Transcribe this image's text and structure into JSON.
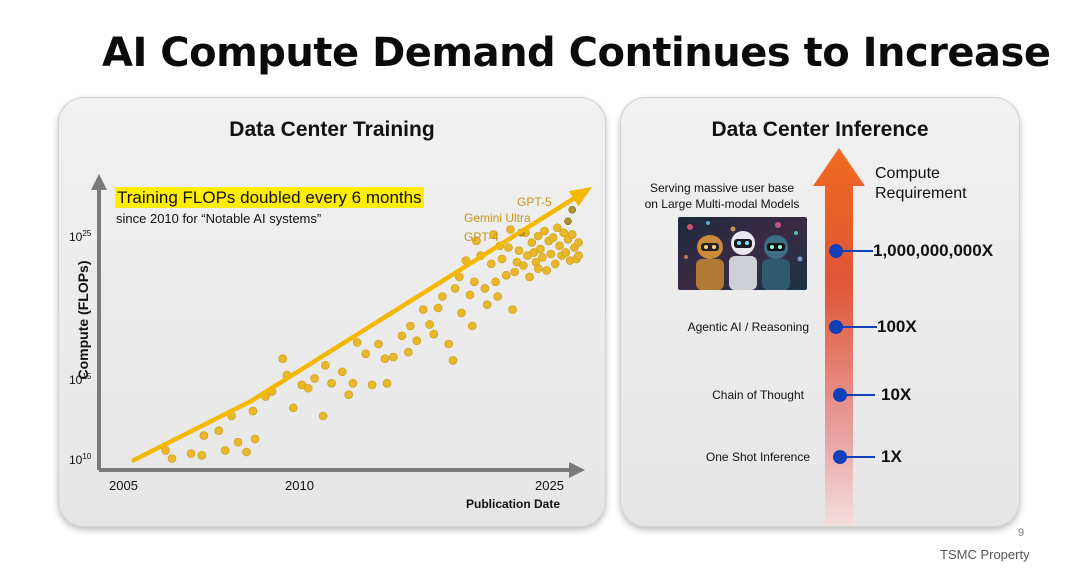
{
  "page": {
    "title": "AI Compute Demand Continues to Increase",
    "page_number": "9",
    "footer": "TSMC Property"
  },
  "training_panel": {
    "title": "Data Center Training",
    "highlight": "Training FLOPs doubled every 6 months",
    "subtitle": "since 2010 for “Notable AI systems”",
    "ylabel": "Compute (FLOPs)",
    "xlabel": "Publication Date",
    "yticks": [
      {
        "base": "10",
        "exp": "25"
      },
      {
        "base": "10",
        "exp": "15"
      },
      {
        "base": "10",
        "exp": "10"
      }
    ],
    "xticks": [
      "2005",
      "2010",
      "2025"
    ],
    "model_labels": [
      "GPT-5",
      "Gemini Ultra",
      "GPT-4"
    ]
  },
  "inference_panel": {
    "title": "Data Center Inference",
    "compute_requirement": [
      "Compute",
      "Requirement"
    ],
    "top_text": [
      "Serving massive user base",
      "on Large Multi-modal Models"
    ],
    "levels": [
      {
        "label": "One Shot Inference",
        "value": "1X"
      },
      {
        "label": "Chain of Thought",
        "value": "10X"
      },
      {
        "label": "Agentic AI / Reasoning",
        "value": "100X"
      },
      {
        "label": "",
        "value": "1,000,000,000X"
      }
    ]
  },
  "colors": {
    "trend": "#f5b800",
    "dot": "#e8b82a",
    "highlight": "#ffee00",
    "model_label": "#c8941a",
    "level_dot": "#1240b8",
    "arrow_top": "#f06a20",
    "arrow_bottom": "#f2dada"
  },
  "chart_data": {
    "type": "scatter",
    "title": "Data Center Training",
    "xlabel": "Publication Date",
    "ylabel": "Compute (FLOPs)",
    "y_scale": "log10",
    "xlim": [
      2004.5,
      2026.2
    ],
    "ylim": [
      9.7,
      29.5
    ],
    "grid": false,
    "trend_line": {
      "x": [
        2005,
        2010.5,
        2026.3
      ],
      "y": [
        10.3,
        13.9,
        26.8
      ]
    },
    "labeled_points": [
      {
        "name": "GPT-5",
        "x": 2025.6,
        "y": 25.6
      },
      {
        "name": "Gemini Ultra",
        "x": 2025.4,
        "y": 24.9
      },
      {
        "name": "GPT-4",
        "x": 2023.2,
        "y": 24.2
      }
    ],
    "points": [
      [
        2006.5,
        10.9
      ],
      [
        2006.8,
        10.4
      ],
      [
        2007.7,
        10.7
      ],
      [
        2008.2,
        10.6
      ],
      [
        2008.3,
        11.8
      ],
      [
        2009.0,
        12.1
      ],
      [
        2009.3,
        10.9
      ],
      [
        2009.6,
        13.0
      ],
      [
        2009.9,
        11.4
      ],
      [
        2010.3,
        10.8
      ],
      [
        2010.7,
        11.6
      ],
      [
        2010.6,
        13.3
      ],
      [
        2011.2,
        14.2
      ],
      [
        2011.5,
        14.5
      ],
      [
        2012.0,
        16.5
      ],
      [
        2012.2,
        15.5
      ],
      [
        2012.5,
        13.5
      ],
      [
        2012.9,
        14.9
      ],
      [
        2013.2,
        14.7
      ],
      [
        2013.5,
        15.3
      ],
      [
        2013.9,
        13.0
      ],
      [
        2014.0,
        16.1
      ],
      [
        2014.3,
        15.0
      ],
      [
        2014.8,
        15.7
      ],
      [
        2015.1,
        14.3
      ],
      [
        2015.3,
        15.0
      ],
      [
        2015.5,
        17.5
      ],
      [
        2015.9,
        16.8
      ],
      [
        2016.2,
        14.9
      ],
      [
        2016.5,
        17.4
      ],
      [
        2016.8,
        16.5
      ],
      [
        2016.9,
        15.0
      ],
      [
        2017.2,
        16.6
      ],
      [
        2017.6,
        17.9
      ],
      [
        2017.9,
        16.9
      ],
      [
        2018.0,
        18.5
      ],
      [
        2018.3,
        17.6
      ],
      [
        2018.6,
        19.5
      ],
      [
        2018.9,
        18.6
      ],
      [
        2019.1,
        18.0
      ],
      [
        2019.3,
        19.6
      ],
      [
        2019.5,
        20.3
      ],
      [
        2019.8,
        17.4
      ],
      [
        2020.0,
        16.4
      ],
      [
        2020.1,
        20.8
      ],
      [
        2020.3,
        21.5
      ],
      [
        2020.4,
        19.3
      ],
      [
        2020.6,
        22.5
      ],
      [
        2020.8,
        20.4
      ],
      [
        2020.9,
        18.5
      ],
      [
        2021.0,
        21.2
      ],
      [
        2021.1,
        23.7
      ],
      [
        2021.3,
        22.8
      ],
      [
        2021.5,
        20.8
      ],
      [
        2021.6,
        19.8
      ],
      [
        2021.8,
        22.3
      ],
      [
        2021.9,
        24.1
      ],
      [
        2022.0,
        21.2
      ],
      [
        2022.1,
        20.3
      ],
      [
        2022.2,
        23.4
      ],
      [
        2022.3,
        22.6
      ],
      [
        2022.5,
        21.6
      ],
      [
        2022.6,
        23.3
      ],
      [
        2022.7,
        24.4
      ],
      [
        2022.8,
        19.5
      ],
      [
        2022.9,
        21.8
      ],
      [
        2023.0,
        22.4
      ],
      [
        2023.1,
        23.1
      ],
      [
        2023.3,
        22.2
      ],
      [
        2023.4,
        24.2
      ],
      [
        2023.5,
        22.8
      ],
      [
        2023.6,
        21.5
      ],
      [
        2023.7,
        23.6
      ],
      [
        2023.8,
        23.0
      ],
      [
        2023.9,
        22.4
      ],
      [
        2024.0,
        24.0
      ],
      [
        2024.0,
        22.0
      ],
      [
        2024.1,
        23.2
      ],
      [
        2024.2,
        22.7
      ],
      [
        2024.3,
        24.3
      ],
      [
        2024.4,
        21.9
      ],
      [
        2024.5,
        23.7
      ],
      [
        2024.6,
        22.9
      ],
      [
        2024.7,
        23.9
      ],
      [
        2024.8,
        22.3
      ],
      [
        2024.9,
        24.5
      ],
      [
        2025.0,
        23.4
      ],
      [
        2025.1,
        22.8
      ],
      [
        2025.2,
        24.2
      ],
      [
        2025.3,
        23.0
      ],
      [
        2025.4,
        23.8
      ],
      [
        2025.5,
        22.5
      ],
      [
        2025.6,
        24.1
      ],
      [
        2025.7,
        23.3
      ],
      [
        2025.8,
        22.6
      ],
      [
        2025.9,
        23.6
      ],
      [
        2025.9,
        22.8
      ]
    ]
  }
}
